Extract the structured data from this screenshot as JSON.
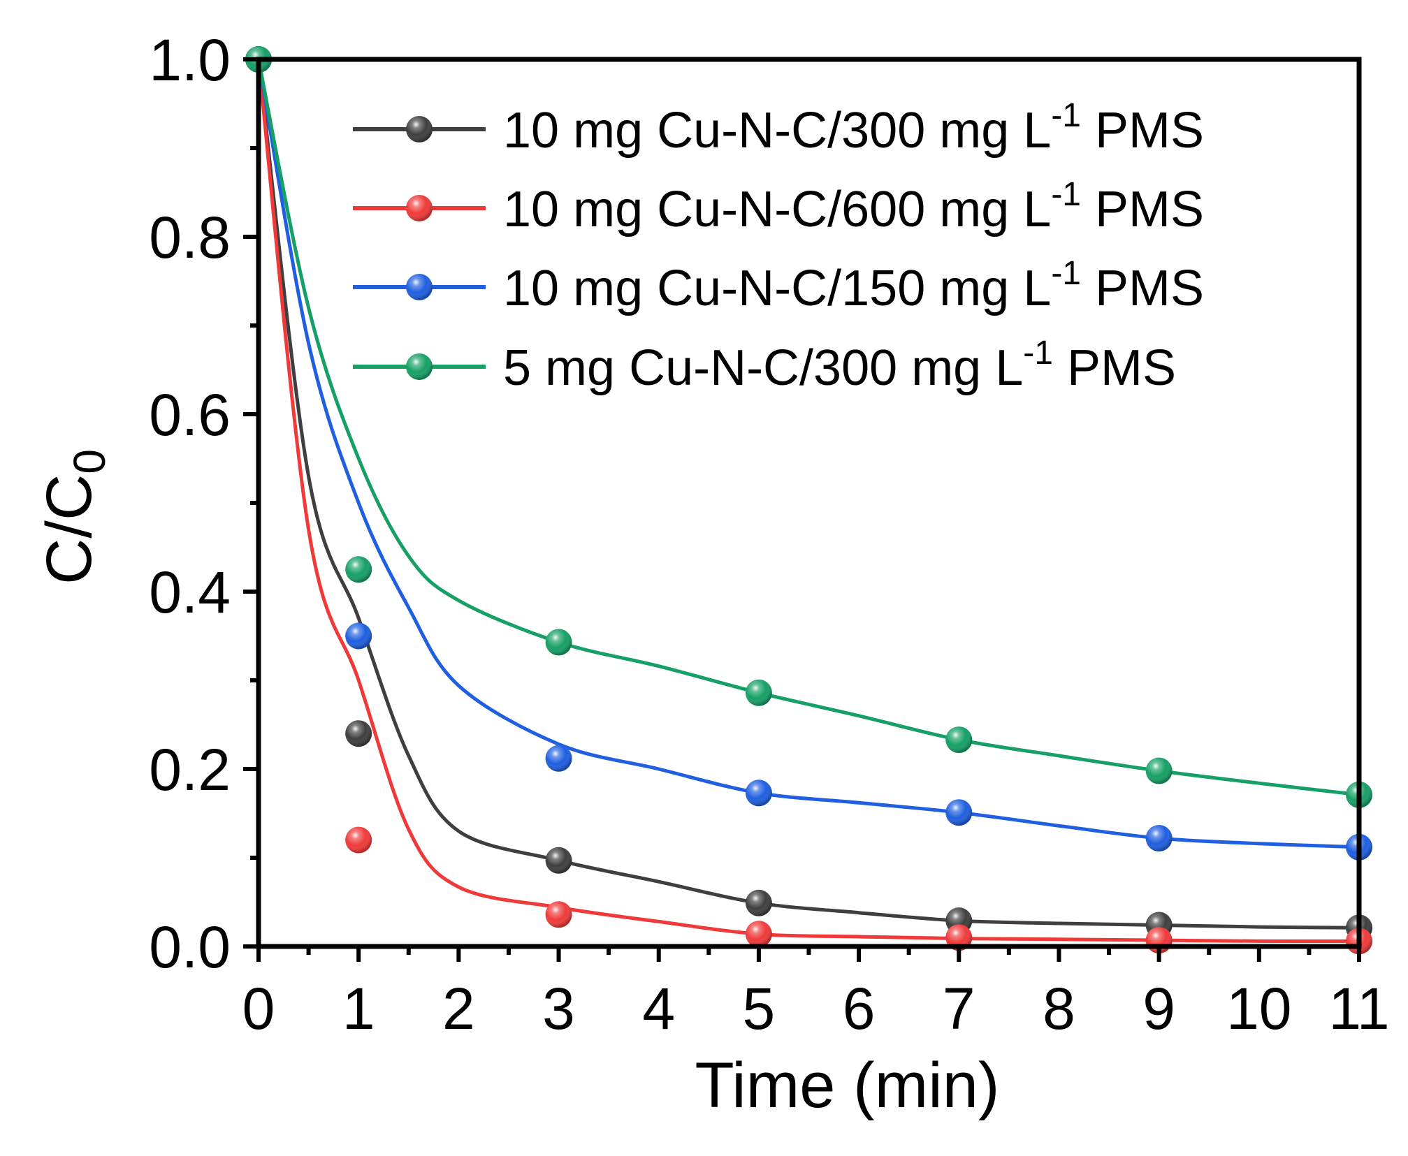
{
  "chart_data": {
    "type": "scatter",
    "xlabel": "Time (min)",
    "ylabel_main": "C/C",
    "ylabel_sub": "0",
    "xlim": [
      0,
      11
    ],
    "ylim": [
      0,
      1.0
    ],
    "x_ticks": [
      0,
      1,
      2,
      3,
      4,
      5,
      6,
      7,
      8,
      9,
      10,
      11
    ],
    "x_tick_labels": [
      "0",
      "1",
      "2",
      "3",
      "4",
      "5",
      "6",
      "7",
      "8",
      "9",
      "10",
      "11"
    ],
    "y_ticks": [
      0,
      0.2,
      0.4,
      0.6,
      0.8,
      1.0
    ],
    "y_tick_labels": [
      "0.0",
      "0.2",
      "0.4",
      "0.6",
      "0.8",
      "1.0"
    ],
    "grid": false,
    "legend_position": "top-right",
    "series": [
      {
        "name_main": "10 mg Cu-N-C/300 mg L",
        "name_sup": "-1",
        "name_tail": " PMS",
        "color": "#3f3f3f",
        "x": [
          0,
          1,
          3,
          5,
          7,
          9,
          11
        ],
        "values": [
          1.0,
          0.24,
          0.097,
          0.049,
          0.029,
          0.024,
          0.021
        ],
        "fit_y": [
          1.0,
          0.53,
          0.37,
          0.215,
          0.13,
          0.097,
          0.073,
          0.049,
          0.038,
          0.029,
          0.026,
          0.024,
          0.022,
          0.021
        ]
      },
      {
        "name_main": "10 mg Cu-N-C/600 mg L",
        "name_sup": "-1",
        "name_tail": " PMS",
        "color": "#f03a3a",
        "x": [
          0,
          1,
          3,
          5,
          7,
          9,
          11
        ],
        "values": [
          1.0,
          0.12,
          0.036,
          0.014,
          0.01,
          0.007,
          0.006
        ],
        "fit_y": [
          1.0,
          0.47,
          0.3,
          0.132,
          0.067,
          0.044,
          0.028,
          0.014,
          0.011,
          0.009,
          0.008,
          0.007,
          0.006,
          0.006
        ]
      },
      {
        "name_main": "10 mg Cu-N-C/150 mg L",
        "name_sup": "-1",
        "name_tail": " PMS",
        "color": "#1f5fe0",
        "x": [
          0,
          1,
          3,
          5,
          7,
          9,
          11
        ],
        "values": [
          1.0,
          0.35,
          0.212,
          0.173,
          0.151,
          0.122,
          0.112
        ],
        "fit_y": [
          1.0,
          0.68,
          0.5,
          0.382,
          0.294,
          0.228,
          0.2,
          0.173,
          0.162,
          0.151,
          0.136,
          0.122,
          0.116,
          0.112
        ]
      },
      {
        "name_main": "5 mg Cu-N-C/300 mg L",
        "name_sup": "-1",
        "name_tail": " PMS",
        "color": "#16a066",
        "x": [
          0,
          1,
          3,
          5,
          7,
          9,
          11
        ],
        "values": [
          1.0,
          0.425,
          0.343,
          0.286,
          0.233,
          0.198,
          0.171
        ],
        "fit_y": [
          1.0,
          0.72,
          0.55,
          0.44,
          0.39,
          0.343,
          0.316,
          0.286,
          0.26,
          0.233,
          0.215,
          0.198,
          0.184,
          0.171
        ]
      }
    ],
    "fit_x": [
      0,
      0.5,
      1,
      1.5,
      2,
      3,
      4,
      5,
      6,
      7,
      8,
      9,
      10,
      11
    ]
  }
}
